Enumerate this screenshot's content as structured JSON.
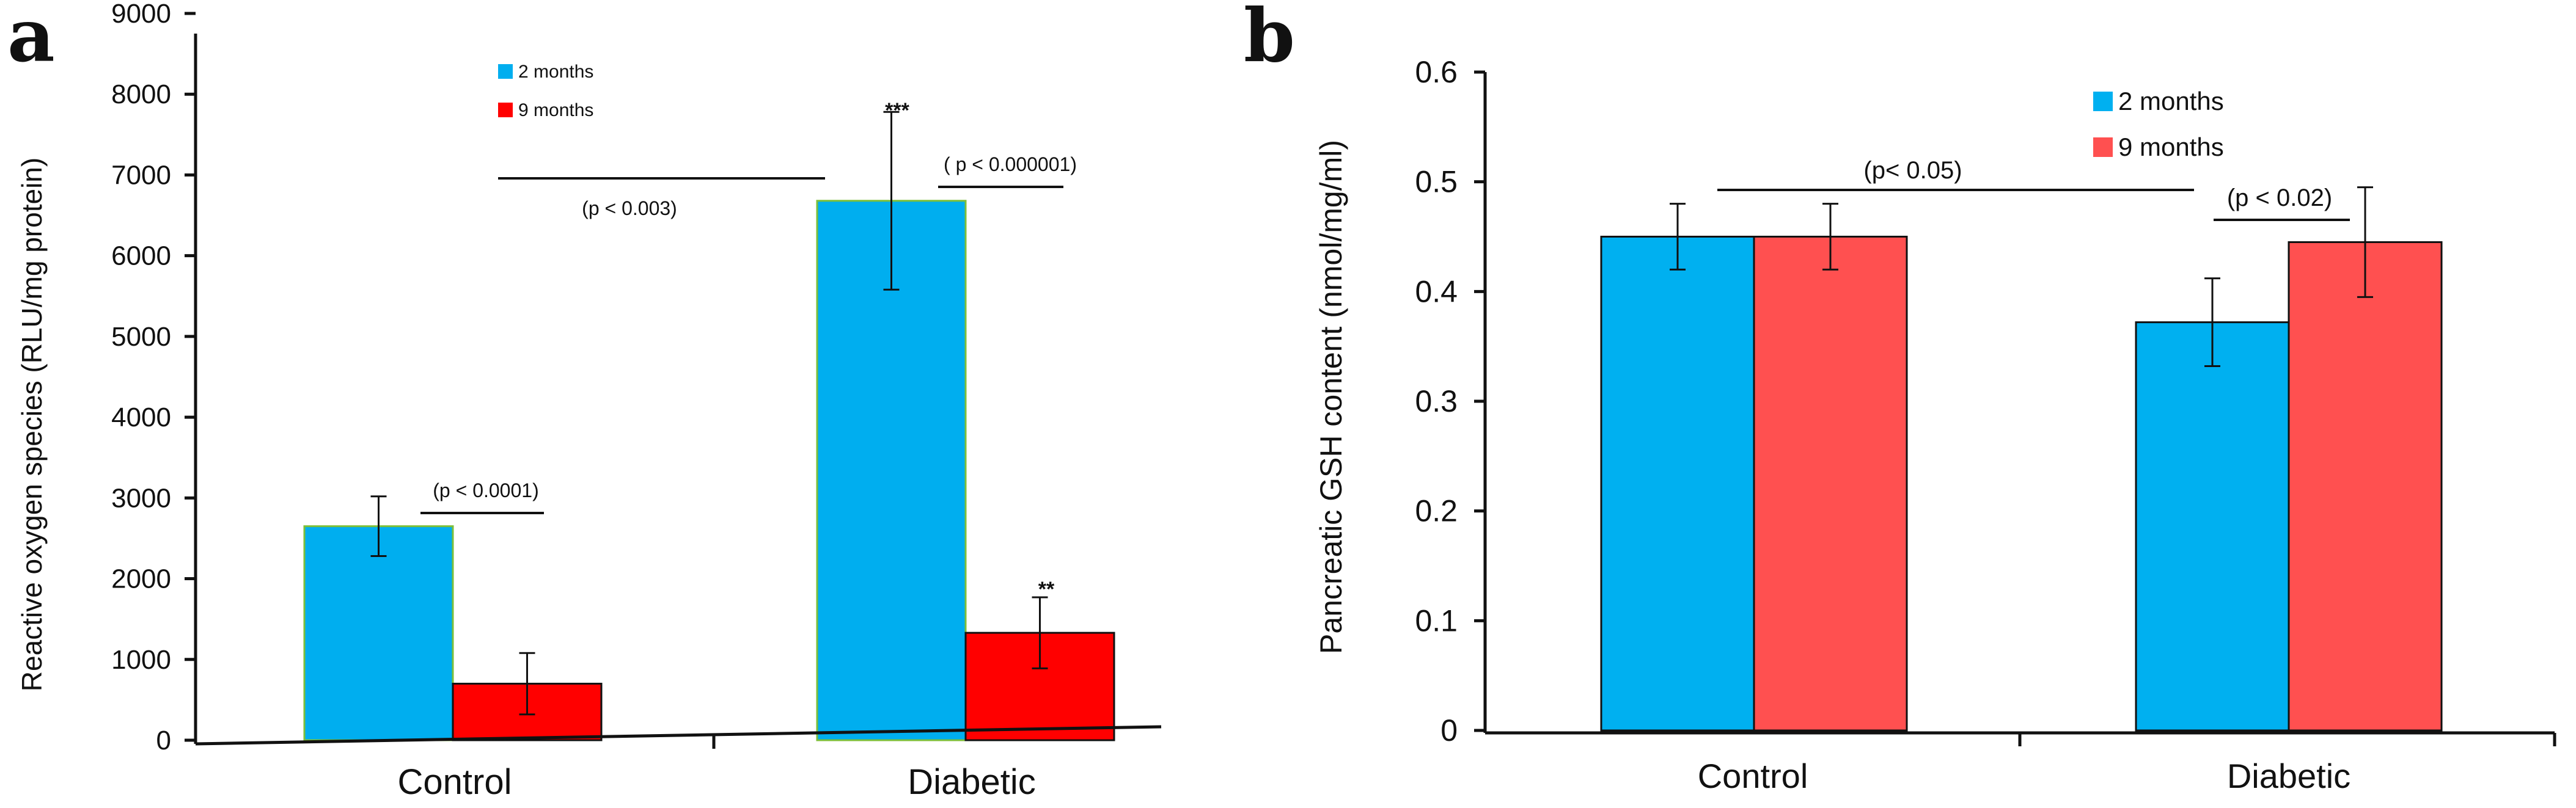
{
  "chart_data": [
    {
      "type": "bar",
      "panel_label": "a",
      "title": "",
      "xlabel": "",
      "ylabel": "Reactive oxygen species (RLU/mg protein)",
      "ylim": [
        0,
        9000
      ],
      "yticks": [
        "0",
        "1000",
        "2000",
        "3000",
        "4000",
        "5000",
        "6000",
        "7000",
        "8000",
        "9000"
      ],
      "categories": [
        "Control",
        "Diabetic"
      ],
      "legend_position": "top-center",
      "series": [
        {
          "name": "2 months",
          "color": "#00AEEF",
          "edge": "#7dbf3a",
          "values": [
            2650,
            6680
          ],
          "errors": [
            370,
            1100
          ]
        },
        {
          "name": "9 months",
          "color": "#FF0000",
          "edge": "#111111",
          "values": [
            700,
            1330
          ],
          "errors": [
            380,
            440
          ]
        }
      ],
      "significance": [
        {
          "text": "(p < 0.0001)"
        },
        {
          "text": "(p < 0.003)"
        },
        {
          "text": "( p < 0.000001)"
        }
      ],
      "stars": [
        "***",
        "**"
      ]
    },
    {
      "type": "bar",
      "panel_label": "b",
      "title": "",
      "xlabel": "",
      "ylabel": "Pancreatic GSH content (nmol/mg/ml)",
      "ylim": [
        0,
        0.6
      ],
      "yticks": [
        "0",
        "0.1",
        "0.2",
        "0.3",
        "0.4",
        "0.5",
        "0.6"
      ],
      "categories": [
        "Control",
        "Diabetic"
      ],
      "legend_position": "top-right",
      "series": [
        {
          "name": "2 months",
          "color": "#00B0F0",
          "edge": "#111111",
          "values": [
            0.45,
            0.372
          ],
          "errors": [
            0.03,
            0.04
          ]
        },
        {
          "name": "9 months",
          "color": "#FF5050",
          "edge": "#111111",
          "values": [
            0.45,
            0.445
          ],
          "errors": [
            0.03,
            0.05
          ]
        }
      ],
      "significance": [
        {
          "text": "(p< 0.05)"
        },
        {
          "text": "(p < 0.02)"
        }
      ],
      "stars": []
    }
  ]
}
